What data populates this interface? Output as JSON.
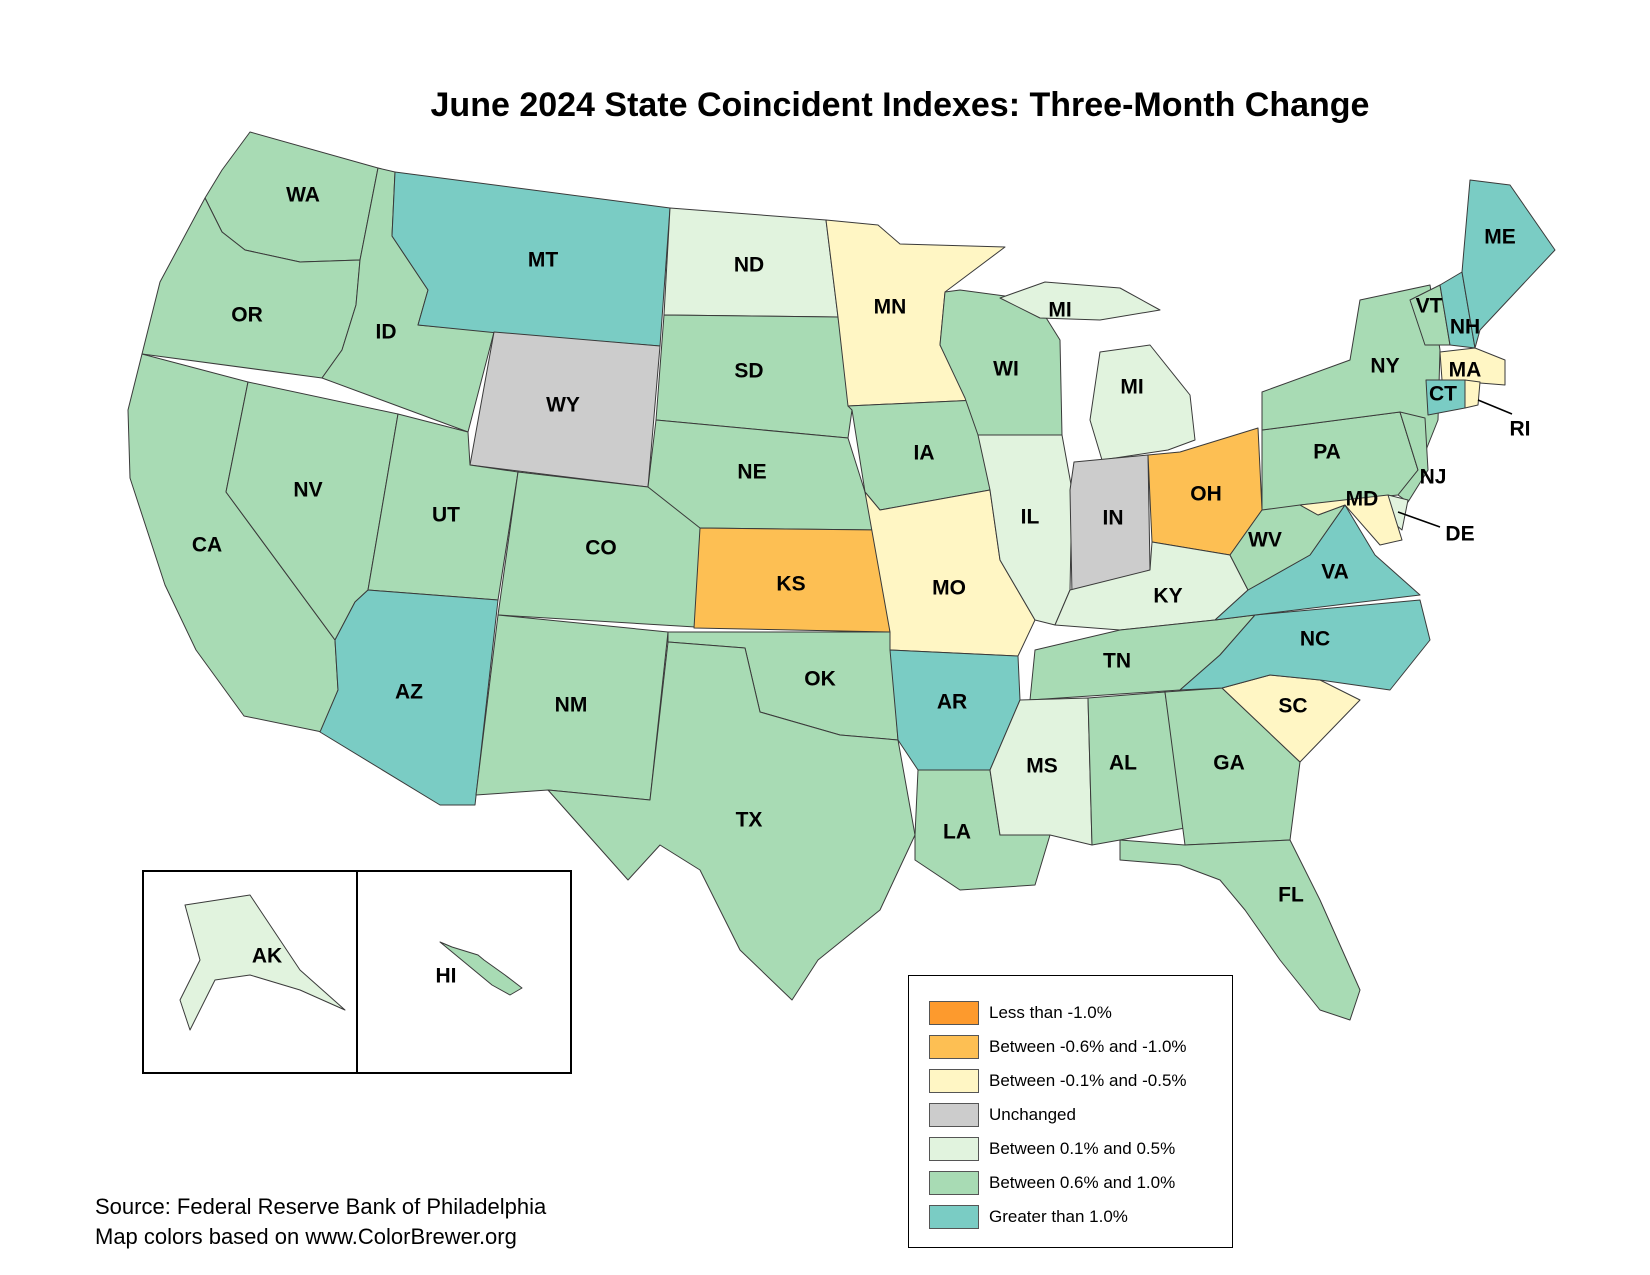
{
  "title": "June 2024 State Coincident Indexes: Three-Month Change",
  "legend": [
    {
      "label": "Less than -1.0%",
      "color": "#fd9a2d"
    },
    {
      "label": "Between -0.6% and -1.0%",
      "color": "#fdbf53"
    },
    {
      "label": "Between -0.1% and -0.5%",
      "color": "#fff6c4"
    },
    {
      "label": "Unchanged",
      "color": "#cccccc"
    },
    {
      "label": "Between 0.1% and 0.5%",
      "color": "#e1f3de"
    },
    {
      "label": "Between 0.6% and 1.0%",
      "color": "#a8dbb4"
    },
    {
      "label": "Greater than 1.0%",
      "color": "#7accc4"
    }
  ],
  "source_lines": [
    "Source: Federal Reserve Bank of Philadelphia",
    "Map colors based on www.ColorBrewer.org"
  ],
  "states": {
    "WA": {
      "category": 5
    },
    "OR": {
      "category": 5
    },
    "CA": {
      "category": 5
    },
    "ID": {
      "category": 5
    },
    "NV": {
      "category": 5
    },
    "MT": {
      "category": 6
    },
    "WY": {
      "category": 3
    },
    "UT": {
      "category": 5
    },
    "AZ": {
      "category": 6
    },
    "CO": {
      "category": 5
    },
    "NM": {
      "category": 5
    },
    "ND": {
      "category": 4
    },
    "SD": {
      "category": 5
    },
    "NE": {
      "category": 5
    },
    "KS": {
      "category": 1
    },
    "OK": {
      "category": 5
    },
    "TX": {
      "category": 5
    },
    "MN": {
      "category": 2
    },
    "IA": {
      "category": 5
    },
    "MO": {
      "category": 2
    },
    "AR": {
      "category": 6
    },
    "LA": {
      "category": 5
    },
    "WI": {
      "category": 5
    },
    "IL": {
      "category": 4
    },
    "MI": {
      "category": 4
    },
    "IN": {
      "category": 3
    },
    "OH": {
      "category": 1
    },
    "KY": {
      "category": 4
    },
    "TN": {
      "category": 5
    },
    "MS": {
      "category": 4
    },
    "AL": {
      "category": 5
    },
    "GA": {
      "category": 5
    },
    "FL": {
      "category": 5
    },
    "SC": {
      "category": 2
    },
    "NC": {
      "category": 6
    },
    "VA": {
      "category": 6
    },
    "WV": {
      "category": 5
    },
    "PA": {
      "category": 5
    },
    "NY": {
      "category": 5
    },
    "VT": {
      "category": 5
    },
    "NH": {
      "category": 6
    },
    "ME": {
      "category": 6
    },
    "MA": {
      "category": 2
    },
    "RI": {
      "category": 2
    },
    "CT": {
      "category": 6
    },
    "NJ": {
      "category": 5
    },
    "DE": {
      "category": 4
    },
    "MD": {
      "category": 2
    },
    "AK": {
      "category": 4
    },
    "HI": {
      "category": 5
    }
  }
}
